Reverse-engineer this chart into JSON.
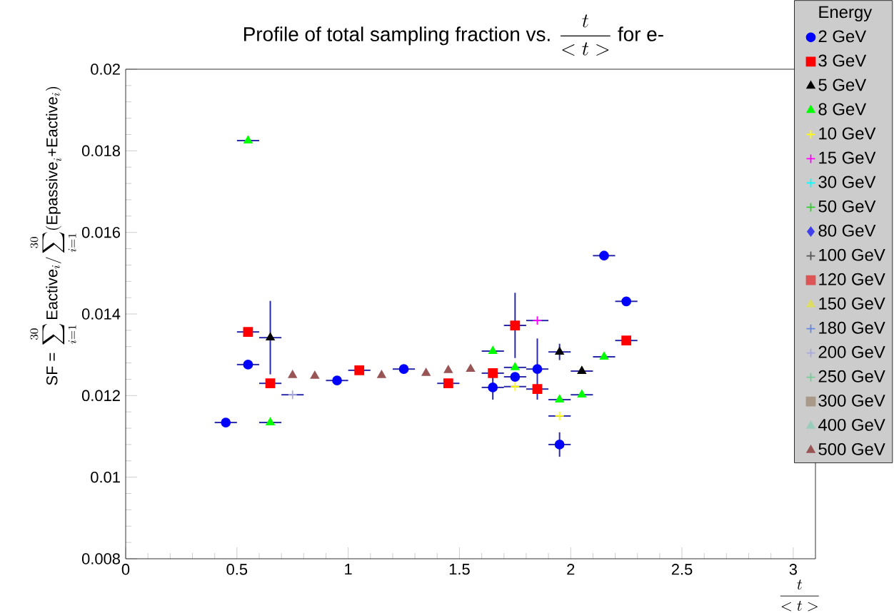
{
  "chart_data": {
    "type": "scatter",
    "title": "\\text{Profile of total sampling fraction vs. }\\frac{t}{<t>}\\text{ for e-}",
    "xlabel": "\\frac{t}{<t>}",
    "ylabel": "\\text{SF = }\\sum_{i=1}^{30}\\text{Eactive}_{i}/\\sum_{i=1}^{30}(\\text{Epassive}_{i}\\text{+}\\text{Eactive}_{i})",
    "legend_title": "Energy",
    "legend": "top right",
    "xlim": [
      0,
      3.1
    ],
    "ylim": [
      0.008,
      0.02
    ],
    "xticks": [
      0,
      0.5,
      1,
      1.5,
      2,
      2.5,
      3
    ],
    "yticks": [
      0.008,
      0.01,
      0.012,
      0.014,
      0.016,
      0.018,
      0.02
    ],
    "series": [
      {
        "name": "2 GeV",
        "color": "#0000ff",
        "marker": "circle",
        "x": [
          0.45,
          0.55,
          0.95,
          1.25,
          1.65,
          1.75,
          1.85,
          1.95,
          2.15,
          2.25
        ],
        "values": [
          0.01134,
          0.01276,
          0.01237,
          0.01265,
          0.0122,
          0.01246,
          0.01265,
          0.0108,
          0.01543,
          0.01431
        ],
        "errors": [
          null,
          null,
          null,
          null,
          0.0003,
          null,
          0.00075,
          0.0003,
          null,
          null
        ],
        "xerrors": [
          0.05,
          0.05,
          0.05,
          0.05,
          0.05,
          0.05,
          0.05,
          0.05,
          0.05,
          0.05
        ]
      },
      {
        "name": "3 GeV",
        "color": "#ff0000",
        "marker": "square",
        "x": [
          0.55,
          0.65,
          1.05,
          1.45,
          1.65,
          1.75,
          1.85,
          2.25
        ],
        "values": [
          0.01356,
          0.0123,
          0.01262,
          0.0123,
          0.01255,
          0.01372,
          0.01216,
          0.01335
        ],
        "errors": [
          null,
          null,
          null,
          null,
          null,
          0.0008,
          null,
          null
        ],
        "xerrors": [
          0.05,
          0.05,
          0.05,
          0.05,
          0.05,
          0.05,
          0.05,
          0.05
        ]
      },
      {
        "name": "5 GeV",
        "color": "#000000",
        "marker": "triangle",
        "x": [
          0.65,
          1.95,
          2.05
        ],
        "values": [
          0.01342,
          0.01307,
          0.0126
        ],
        "errors": [
          0.0009,
          0.0002,
          null
        ],
        "xerrors": [
          0.05,
          0.05,
          0.05
        ]
      },
      {
        "name": "8 GeV",
        "color": "#00ff00",
        "marker": "triangle",
        "x": [
          0.55,
          0.65,
          1.65,
          1.75,
          1.95,
          2.05,
          2.15
        ],
        "values": [
          0.01825,
          0.01134,
          0.01309,
          0.01269,
          0.0119,
          0.01202,
          0.01295
        ],
        "xerrors": [
          0.05,
          0.05,
          0.05,
          0.05,
          0.05,
          0.05,
          0.05
        ]
      },
      {
        "name": "10 GeV",
        "color": "#ffff00",
        "marker": "cross",
        "x": [
          1.75,
          1.95
        ],
        "values": [
          0.01222,
          0.0115
        ],
        "xerrors": [
          0.05,
          0.05
        ]
      },
      {
        "name": "15 GeV",
        "color": "#ff00ff",
        "marker": "cross",
        "x": [
          1.85
        ],
        "values": [
          0.01384
        ],
        "xerrors": [
          0.05
        ]
      },
      {
        "name": "30 GeV",
        "color": "#00ffff",
        "marker": "cross"
      },
      {
        "name": "50 GeV",
        "color": "#33cc33",
        "marker": "cross"
      },
      {
        "name": "80 GeV",
        "color": "#4040ee",
        "marker": "diamond"
      },
      {
        "name": "100 GeV",
        "color": "#555555",
        "marker": "cross"
      },
      {
        "name": "120 GeV",
        "color": "#dd5555",
        "marker": "square"
      },
      {
        "name": "150 GeV",
        "color": "#dddd66",
        "marker": "triangle"
      },
      {
        "name": "180 GeV",
        "color": "#6688dd",
        "marker": "cross"
      },
      {
        "name": "200 GeV",
        "color": "#aaaadd",
        "marker": "cross",
        "x": [
          0.75
        ],
        "values": [
          0.01202
        ],
        "xerrors": [
          0.05
        ]
      },
      {
        "name": "250 GeV",
        "color": "#77cc99",
        "marker": "cross"
      },
      {
        "name": "300 GeV",
        "color": "#aa9988",
        "marker": "square"
      },
      {
        "name": "400 GeV",
        "color": "#99ccbb",
        "marker": "triangle"
      },
      {
        "name": "500 GeV",
        "color": "#995555",
        "marker": "triangle",
        "x": [
          0.75,
          0.85,
          1.15,
          1.35,
          1.45,
          1.55
        ],
        "values": [
          0.0125,
          0.01248,
          0.0125,
          0.01255,
          0.01262,
          0.01265
        ]
      }
    ]
  }
}
